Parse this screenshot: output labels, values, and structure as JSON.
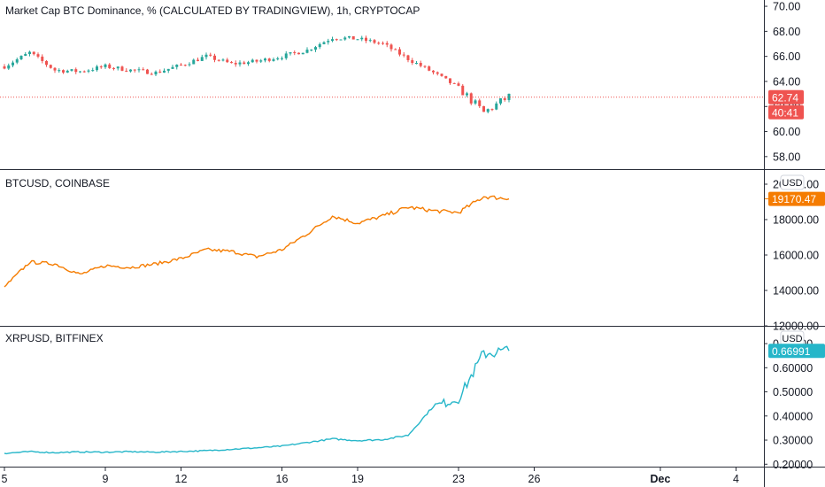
{
  "colors": {
    "up": "#26a69a",
    "down": "#ef5350",
    "btc_line": "#f57c00",
    "xrp_line": "#26b6c9",
    "dom_last_badge": "#ef5350"
  },
  "chart_data": [
    {
      "type": "candlestick",
      "title": "Market Cap BTC Dominance, % (CALCULATED BY TRADINGVIEW), 1h, CRYPTOCAP",
      "ylim": [
        57,
        70.5
      ],
      "y_ticks": [
        "58.00",
        "60.00",
        "62.00",
        "64.00",
        "66.00",
        "68.00",
        "70.00"
      ],
      "last_value_label": "62.74",
      "countdown_label": "40:41",
      "x": [
        "Nov 5",
        "Nov 6",
        "Nov 7",
        "Nov 8",
        "Nov 9",
        "Nov 10",
        "Nov 11",
        "Nov 12",
        "Nov 13",
        "Nov 14",
        "Nov 15",
        "Nov 16",
        "Nov 17",
        "Nov 18",
        "Nov 19",
        "Nov 20",
        "Nov 21",
        "Nov 22",
        "Nov 23",
        "Nov 24",
        "Nov 25"
      ],
      "values": [
        65.2,
        66.3,
        64.9,
        64.8,
        65.2,
        64.9,
        64.7,
        65.3,
        66.0,
        65.4,
        65.6,
        66.0,
        66.5,
        67.5,
        67.4,
        67.0,
        65.8,
        64.7,
        63.5,
        61.5,
        62.8
      ]
    },
    {
      "type": "line",
      "title": "BTCUSD, COINBASE",
      "unit_label": "USD",
      "ylim": [
        12000,
        20800
      ],
      "y_ticks": [
        "12000.00",
        "14000.00",
        "16000.00",
        "18000.00",
        "20000.00"
      ],
      "last_value_label": "19170.47",
      "x": [
        "Nov 5",
        "Nov 6",
        "Nov 7",
        "Nov 8",
        "Nov 9",
        "Nov 10",
        "Nov 11",
        "Nov 12",
        "Nov 13",
        "Nov 14",
        "Nov 15",
        "Nov 16",
        "Nov 17",
        "Nov 18",
        "Nov 19",
        "Nov 20",
        "Nov 21",
        "Nov 22",
        "Nov 23",
        "Nov 24",
        "Nov 25"
      ],
      "values": [
        14200,
        15600,
        15500,
        14900,
        15400,
        15300,
        15500,
        15800,
        16300,
        16200,
        15900,
        16300,
        17200,
        18200,
        17800,
        18200,
        18700,
        18500,
        18400,
        19300,
        19170
      ]
    },
    {
      "type": "line",
      "title": "XRPUSD, BITFINEX",
      "unit_label": "USD",
      "ylim": [
        0.19,
        0.77
      ],
      "y_ticks": [
        "0.20000",
        "0.30000",
        "0.40000",
        "0.50000",
        "0.60000",
        "0.70000"
      ],
      "last_value_label": "0.66991",
      "x": [
        "Nov 5",
        "Nov 6",
        "Nov 7",
        "Nov 8",
        "Nov 9",
        "Nov 10",
        "Nov 11",
        "Nov 12",
        "Nov 13",
        "Nov 14",
        "Nov 15",
        "Nov 16",
        "Nov 17",
        "Nov 18",
        "Nov 19",
        "Nov 20",
        "Nov 21",
        "Nov 22",
        "Nov 23",
        "Nov 24",
        "Nov 25"
      ],
      "values": [
        0.245,
        0.252,
        0.248,
        0.251,
        0.25,
        0.252,
        0.25,
        0.253,
        0.256,
        0.262,
        0.268,
        0.275,
        0.29,
        0.305,
        0.298,
        0.302,
        0.32,
        0.44,
        0.47,
        0.66,
        0.67
      ]
    }
  ],
  "x_axis": {
    "ticks": [
      {
        "label": "5",
        "bold": false
      },
      {
        "label": "9",
        "bold": false
      },
      {
        "label": "12",
        "bold": false
      },
      {
        "label": "16",
        "bold": false
      },
      {
        "label": "19",
        "bold": false
      },
      {
        "label": "23",
        "bold": false
      },
      {
        "label": "26",
        "bold": false
      },
      {
        "label": "Dec",
        "bold": true
      },
      {
        "label": "4",
        "bold": false
      }
    ]
  }
}
